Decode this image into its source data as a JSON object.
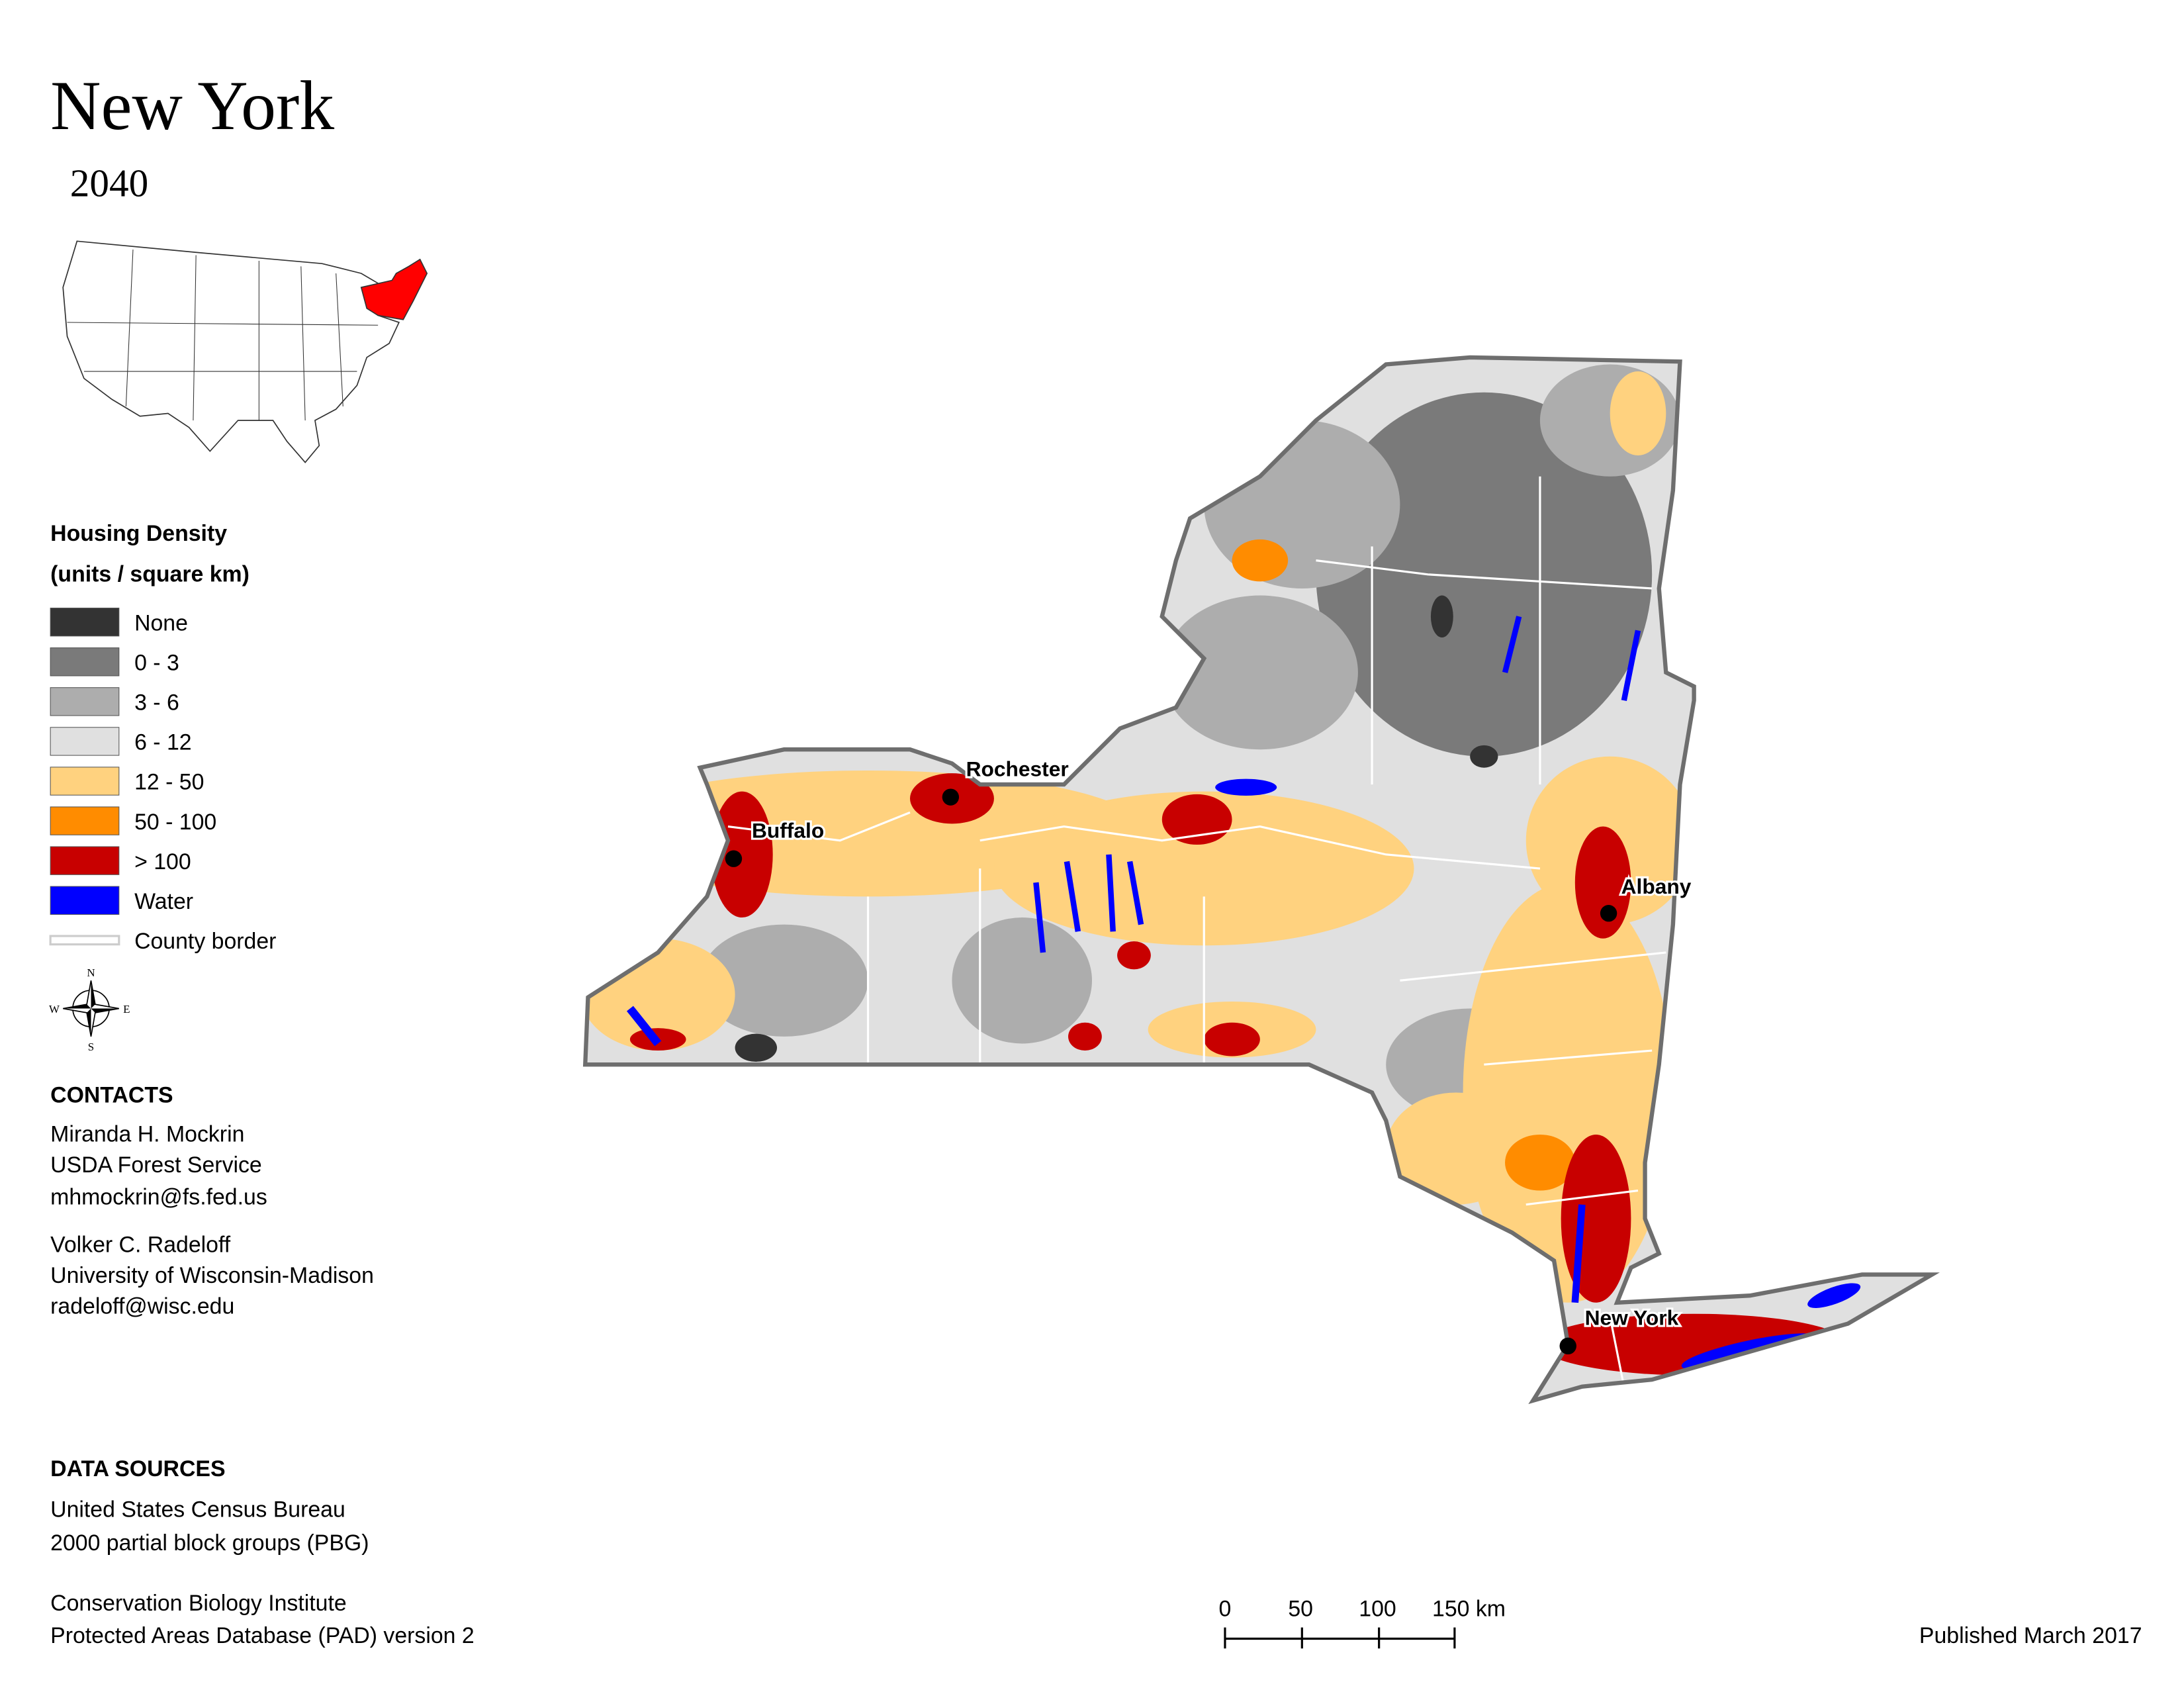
{
  "header": {
    "title": "New York",
    "subtitle": "2040"
  },
  "legend": {
    "title": "Housing Density",
    "units": "(units / square km)",
    "items": [
      {
        "label": "None",
        "color": "#333333"
      },
      {
        "label": "0 - 3",
        "color": "#7a7a7a"
      },
      {
        "label": "3 - 6",
        "color": "#adadad"
      },
      {
        "label": "6 - 12",
        "color": "#e0e0e0"
      },
      {
        "label": "12 - 50",
        "color": "#ffd27f"
      },
      {
        "label": "50 - 100",
        "color": "#ff8c00"
      },
      {
        "label": "> 100",
        "color": "#c80000"
      },
      {
        "label": "Water",
        "color": "#0000ff"
      },
      {
        "label": "County border",
        "color": "#cccccc"
      }
    ]
  },
  "compass": {
    "n": "N",
    "s": "S",
    "e": "E",
    "w": "W"
  },
  "cities": [
    "Rochester",
    "Buffalo",
    "Albany",
    "New York"
  ],
  "contacts": {
    "heading": "CONTACTS",
    "people": [
      [
        "Miranda H. Mockrin",
        "USDA Forest Service",
        "mhmockrin@fs.fed.us"
      ],
      [
        "Volker C. Radeloff",
        "University of Wisconsin-Madison",
        "radeloff@wisc.edu"
      ]
    ]
  },
  "data_sources": {
    "heading": "DATA SOURCES",
    "groups": [
      [
        "United States Census Bureau",
        "2000 partial block groups (PBG)"
      ],
      [
        "Conservation Biology Institute",
        "Protected Areas Database (PAD) version 2"
      ]
    ]
  },
  "scale_bar": [
    "0",
    "50",
    "100",
    "150 km"
  ],
  "footer": {
    "published": "Published March 2017"
  }
}
